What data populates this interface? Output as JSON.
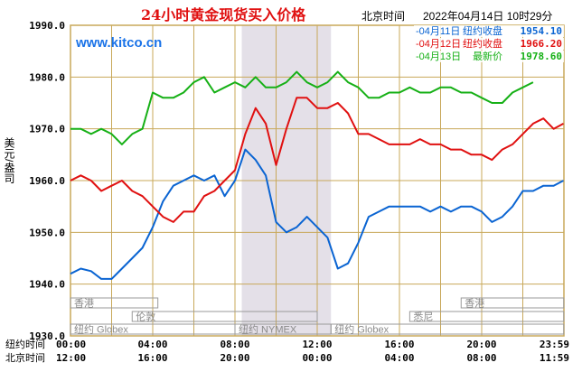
{
  "chart_data": {
    "type": "line",
    "title": "24小时黄金现货买入价格",
    "header_location": "北京时间",
    "header_datetime": "2022年04月14日 10时29分",
    "watermark": "www.kitco.cn",
    "ylabel": "美元/盎司",
    "ylim": [
      1930,
      1990
    ],
    "yticks": [
      "1930.0",
      "1940.0",
      "1950.0",
      "1960.0",
      "1970.0",
      "1980.0",
      "1990.0"
    ],
    "grid": true,
    "x_ticks": [
      0,
      4,
      8,
      12,
      16,
      20,
      23.983
    ],
    "x_label_rows": [
      {
        "name": "纽约时间",
        "labels": [
          "00:00",
          "04:00",
          "08:00",
          "12:00",
          "16:00",
          "20:00",
          "23:59"
        ]
      },
      {
        "name": "北京时间",
        "labels": [
          "12:00",
          "16:00",
          "20:00",
          "00:00",
          "04:00",
          "08:00",
          "11:59"
        ]
      }
    ],
    "highlight_range_hours": [
      8.33,
      12.67
    ],
    "market_sessions": [
      {
        "name": "香港",
        "start": 0.0,
        "end": 4.25
      },
      {
        "name": "香港",
        "start": 19.0,
        "end": 23.99
      },
      {
        "name": "伦敦",
        "start": 3.0,
        "end": 12.0
      },
      {
        "name": "悉尼",
        "start": 16.5,
        "end": 23.99
      },
      {
        "name": "纽约 Globex",
        "start": 0.0,
        "end": 8.0
      },
      {
        "name": "纽约 NYMEX",
        "start": 8.0,
        "end": 12.67
      },
      {
        "name": "纽约 Globex",
        "start": 12.67,
        "end": 23.99
      }
    ],
    "legend_placement": "top-right",
    "series": [
      {
        "name": "04月11日",
        "status": "纽约收盘",
        "value_label": "1954.10",
        "color": "#0a64d2",
        "x": [
          0,
          0.5,
          1,
          1.5,
          2,
          2.5,
          3,
          3.5,
          4,
          4.5,
          5,
          5.5,
          6,
          6.5,
          7,
          7.5,
          8,
          8.5,
          9,
          9.5,
          10,
          10.5,
          11,
          11.5,
          12,
          12.5,
          13,
          13.5,
          14,
          14.5,
          15,
          15.5,
          16,
          16.5,
          17,
          17.5,
          18,
          18.5,
          19,
          19.5,
          20,
          20.5,
          21,
          21.5,
          22,
          22.5,
          23,
          23.5,
          23.98
        ],
        "y": [
          1942,
          1943,
          1942.5,
          1941,
          1941,
          1943,
          1945,
          1947,
          1951,
          1956,
          1959,
          1960,
          1961,
          1960,
          1961,
          1957,
          1960,
          1966,
          1964,
          1961,
          1952,
          1950,
          1951,
          1953,
          1951,
          1949,
          1943,
          1944,
          1948,
          1953,
          1954,
          1955,
          1955,
          1955,
          1955,
          1954,
          1955,
          1954,
          1955,
          1955,
          1954,
          1952,
          1953,
          1955,
          1958,
          1958,
          1959,
          1959,
          1960
        ]
      },
      {
        "name": "04月12日",
        "status": "纽约收盘",
        "value_label": "1966.20",
        "color": "#e01010",
        "x": [
          0,
          0.5,
          1,
          1.5,
          2,
          2.5,
          3,
          3.5,
          4,
          4.5,
          5,
          5.5,
          6,
          6.5,
          7,
          7.5,
          8,
          8.5,
          9,
          9.5,
          10,
          10.5,
          11,
          11.5,
          12,
          12.5,
          13,
          13.5,
          14,
          14.5,
          15,
          15.5,
          16,
          16.5,
          17,
          17.5,
          18,
          18.5,
          19,
          19.5,
          20,
          20.5,
          21,
          21.5,
          22,
          22.5,
          23,
          23.5,
          23.98
        ],
        "y": [
          1960,
          1961,
          1960,
          1958,
          1959,
          1960,
          1958,
          1957,
          1955,
          1953,
          1952,
          1954,
          1954,
          1957,
          1958,
          1960,
          1962,
          1969,
          1974,
          1971,
          1963,
          1970,
          1976,
          1976,
          1974,
          1974,
          1975,
          1973,
          1969,
          1969,
          1968,
          1967,
          1967,
          1967,
          1968,
          1967,
          1967,
          1966,
          1966,
          1965,
          1965,
          1964,
          1966,
          1967,
          1969,
          1971,
          1972,
          1970,
          1971
        ]
      },
      {
        "name": "04月13日",
        "status": "最新价",
        "value_label": "1978.60",
        "color": "#16b016",
        "x": [
          0,
          0.5,
          1,
          1.5,
          2,
          2.5,
          3,
          3.5,
          4,
          4.5,
          5,
          5.5,
          6,
          6.5,
          7,
          7.5,
          8,
          8.5,
          9,
          9.5,
          10,
          10.5,
          11,
          11.5,
          12,
          12.5,
          13,
          13.5,
          14,
          14.5,
          15,
          15.5,
          16,
          16.5,
          17,
          17.5,
          18,
          18.5,
          19,
          19.5,
          20,
          20.5,
          21,
          21.5,
          22,
          22.5
        ],
        "y": [
          1970,
          1970,
          1969,
          1970,
          1969,
          1967,
          1969,
          1970,
          1977,
          1976,
          1976,
          1977,
          1979,
          1980,
          1977,
          1978,
          1979,
          1978,
          1980,
          1978,
          1978,
          1979,
          1981,
          1979,
          1978,
          1979,
          1981,
          1979,
          1978,
          1976,
          1976,
          1977,
          1977,
          1978,
          1977,
          1977,
          1978,
          1978,
          1977,
          1977,
          1976,
          1975,
          1975,
          1977,
          1978,
          1979
        ]
      }
    ]
  }
}
